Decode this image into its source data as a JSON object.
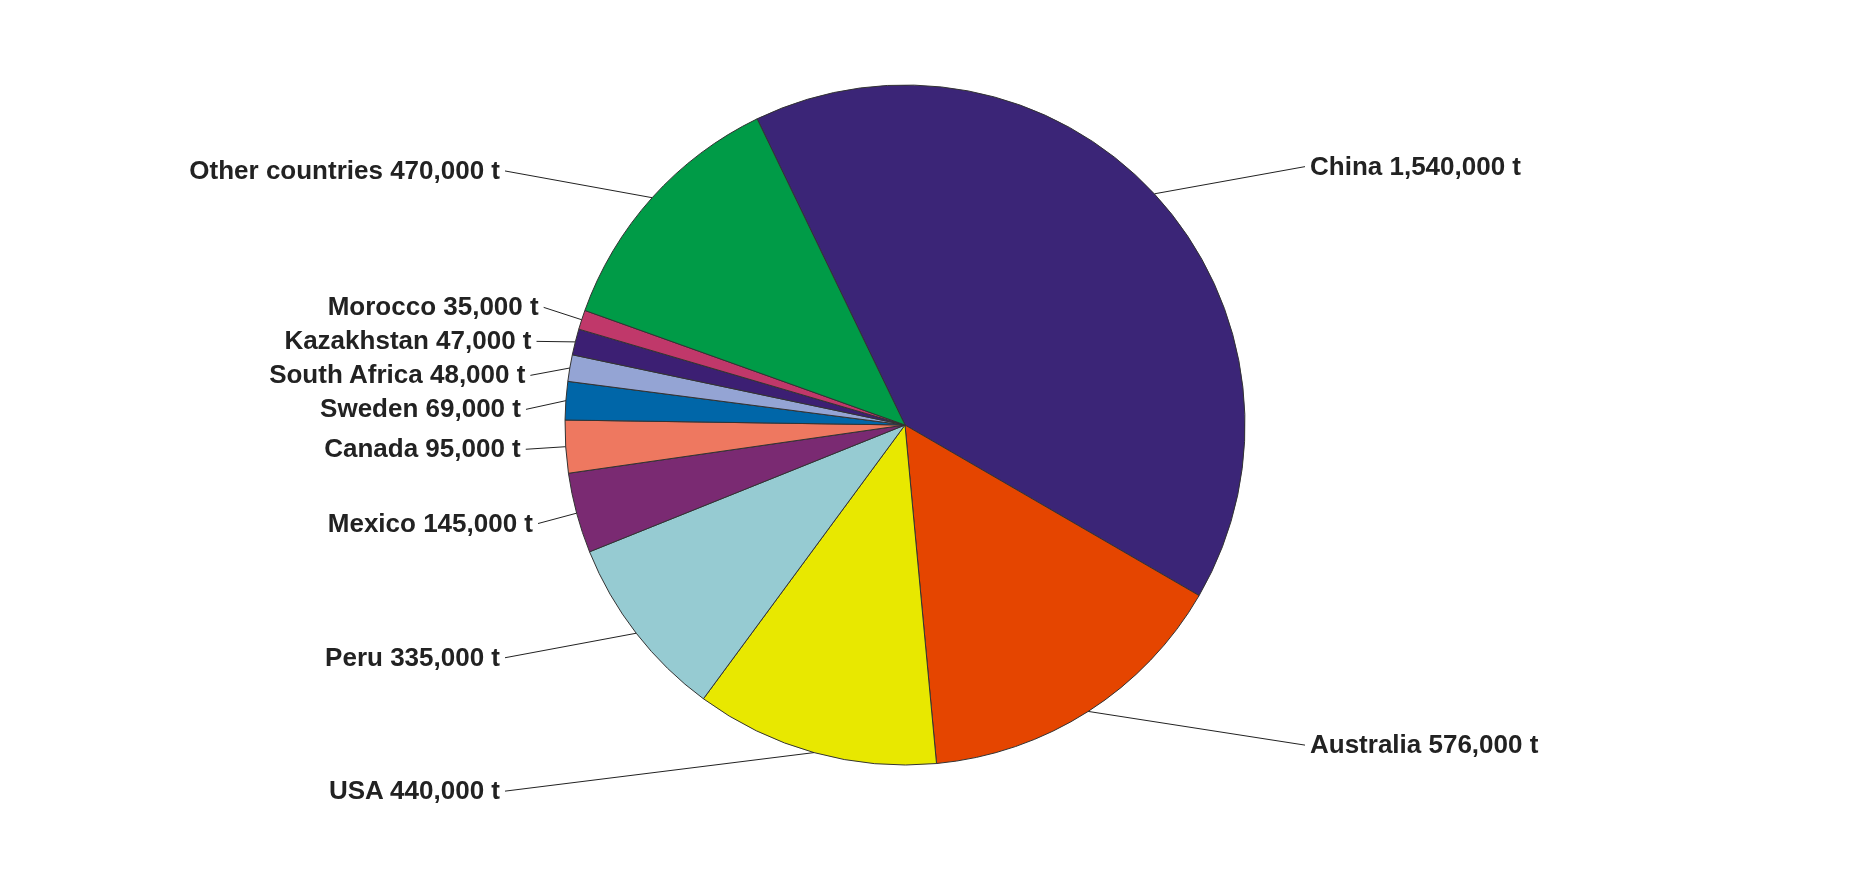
{
  "chart_data": {
    "type": "pie",
    "categories": [
      "China",
      "Australia",
      "USA",
      "Peru",
      "Mexico",
      "Canada",
      "Sweden",
      "South  Africa",
      "Kazakhstan",
      "Morocco",
      "Other countries"
    ],
    "values": [
      1540000,
      576000,
      440000,
      335000,
      145000,
      95000,
      69000,
      48000,
      47000,
      35000,
      470000
    ],
    "value_labels": [
      "1,540,000 t",
      "576,000 t",
      "440,000 t",
      "335,000 t",
      "145,000 t",
      "95,000 t",
      "69,000 t",
      "48,000 t",
      "47,000 t",
      "35,000 t",
      "470,000 t"
    ],
    "colors": [
      "#3b2577",
      "#e54500",
      "#e8e800",
      "#96cbd2",
      "#7a2a72",
      "#ee7860",
      "#0066a8",
      "#94a4d4",
      "#3c1f73",
      "#c0386a",
      "#009b47"
    ]
  }
}
